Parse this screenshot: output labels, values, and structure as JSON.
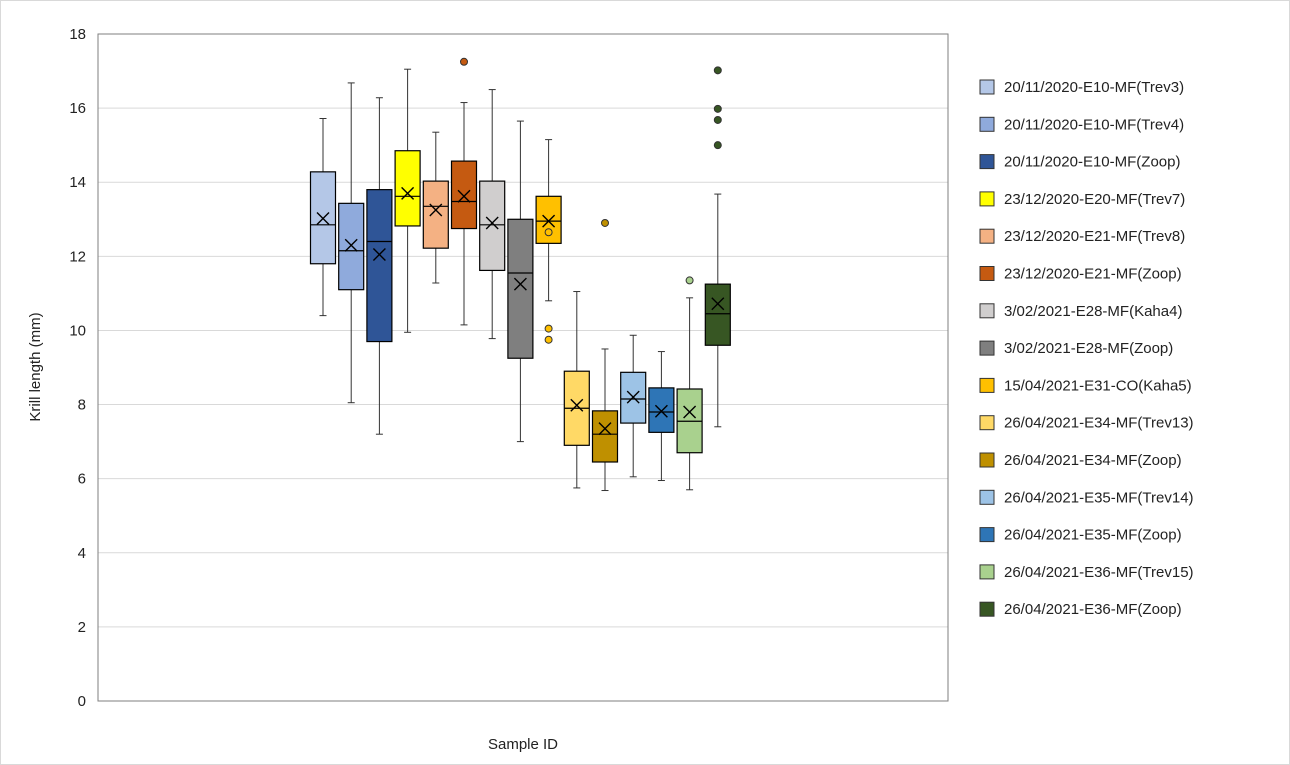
{
  "chart_data": {
    "type": "box",
    "title": "",
    "xlabel": "Sample ID",
    "ylabel": "Krill length (mm)",
    "ylim": [
      0,
      18
    ],
    "yticks": [
      0,
      2,
      4,
      6,
      8,
      10,
      12,
      14,
      16,
      18
    ],
    "grid": "horizontal",
    "legend_position": "right",
    "series": [
      {
        "name": "20/11/2020-E10-MF(Trev3)",
        "color": "#b4c7e7",
        "min": 10.4,
        "q1": 11.8,
        "median": 12.85,
        "q3": 14.28,
        "max": 15.72,
        "mean": 13.02,
        "outliers": []
      },
      {
        "name": "20/11/2020-E10-MF(Trev4)",
        "color": "#8faadc",
        "min": 8.05,
        "q1": 11.1,
        "median": 12.15,
        "q3": 13.43,
        "max": 16.68,
        "mean": 12.3,
        "outliers": []
      },
      {
        "name": "20/11/2020-E10-MF(Zoop)",
        "color": "#2f5597",
        "min": 7.2,
        "q1": 9.7,
        "median": 12.4,
        "q3": 13.8,
        "max": 16.28,
        "mean": 12.05,
        "outliers": []
      },
      {
        "name": "23/12/2020-E20-MF(Trev7)",
        "color": "#ffff00",
        "min": 9.95,
        "q1": 12.82,
        "median": 13.62,
        "q3": 14.85,
        "max": 17.05,
        "mean": 13.7,
        "outliers": []
      },
      {
        "name": "23/12/2020-E21-MF(Trev8)",
        "color": "#f4b183",
        "min": 11.28,
        "q1": 12.22,
        "median": 13.35,
        "q3": 14.03,
        "max": 15.35,
        "mean": 13.25,
        "outliers": []
      },
      {
        "name": "23/12/2020-E21-MF(Zoop)",
        "color": "#c55a11",
        "min": 10.15,
        "q1": 12.75,
        "median": 13.48,
        "q3": 14.57,
        "max": 16.15,
        "mean": 13.62,
        "outliers": [
          17.25
        ]
      },
      {
        "name": "3/02/2021-E28-MF(Kaha4)",
        "color": "#d0cece",
        "min": 9.78,
        "q1": 11.62,
        "median": 12.85,
        "q3": 14.03,
        "max": 16.5,
        "mean": 12.9,
        "outliers": []
      },
      {
        "name": "3/02/2021-E28-MF(Zoop)",
        "color": "#7f7f7f",
        "min": 7.0,
        "q1": 9.25,
        "median": 11.55,
        "q3": 13.0,
        "max": 15.65,
        "mean": 11.25,
        "outliers": []
      },
      {
        "name": "15/04/2021-E31-CO(Kaha5)",
        "color": "#ffc000",
        "min": 10.8,
        "q1": 12.35,
        "median": 12.95,
        "q3": 13.62,
        "max": 15.15,
        "mean": 12.95,
        "outliers": [
          12.65,
          10.05,
          9.75
        ]
      },
      {
        "name": "26/04/2021-E34-MF(Trev13)",
        "color": "#ffd966",
        "min": 5.75,
        "q1": 6.9,
        "median": 7.9,
        "q3": 8.9,
        "max": 11.05,
        "mean": 7.98,
        "outliers": []
      },
      {
        "name": "26/04/2021-E34-MF(Zoop)",
        "color": "#bf9000",
        "min": 5.68,
        "q1": 6.45,
        "median": 7.2,
        "q3": 7.83,
        "max": 9.5,
        "mean": 7.35,
        "outliers": [
          12.9
        ]
      },
      {
        "name": "26/04/2021-E35-MF(Trev14)",
        "color": "#9dc3e6",
        "min": 6.05,
        "q1": 7.5,
        "median": 8.15,
        "q3": 8.87,
        "max": 9.87,
        "mean": 8.2,
        "outliers": []
      },
      {
        "name": "26/04/2021-E35-MF(Zoop)",
        "color": "#2e75b6",
        "min": 5.95,
        "q1": 7.25,
        "median": 7.8,
        "q3": 8.45,
        "max": 9.43,
        "mean": 7.82,
        "outliers": []
      },
      {
        "name": "26/04/2021-E36-MF(Trev15)",
        "color": "#a9d18e",
        "min": 5.7,
        "q1": 6.7,
        "median": 7.55,
        "q3": 8.42,
        "max": 10.88,
        "mean": 7.8,
        "outliers": [
          11.35
        ]
      },
      {
        "name": "26/04/2021-E36-MF(Zoop)",
        "color": "#375623",
        "min": 7.4,
        "q1": 9.6,
        "median": 10.45,
        "q3": 11.25,
        "max": 13.68,
        "mean": 10.72,
        "outliers": [
          15.0,
          15.68,
          15.98,
          17.02
        ]
      }
    ]
  }
}
